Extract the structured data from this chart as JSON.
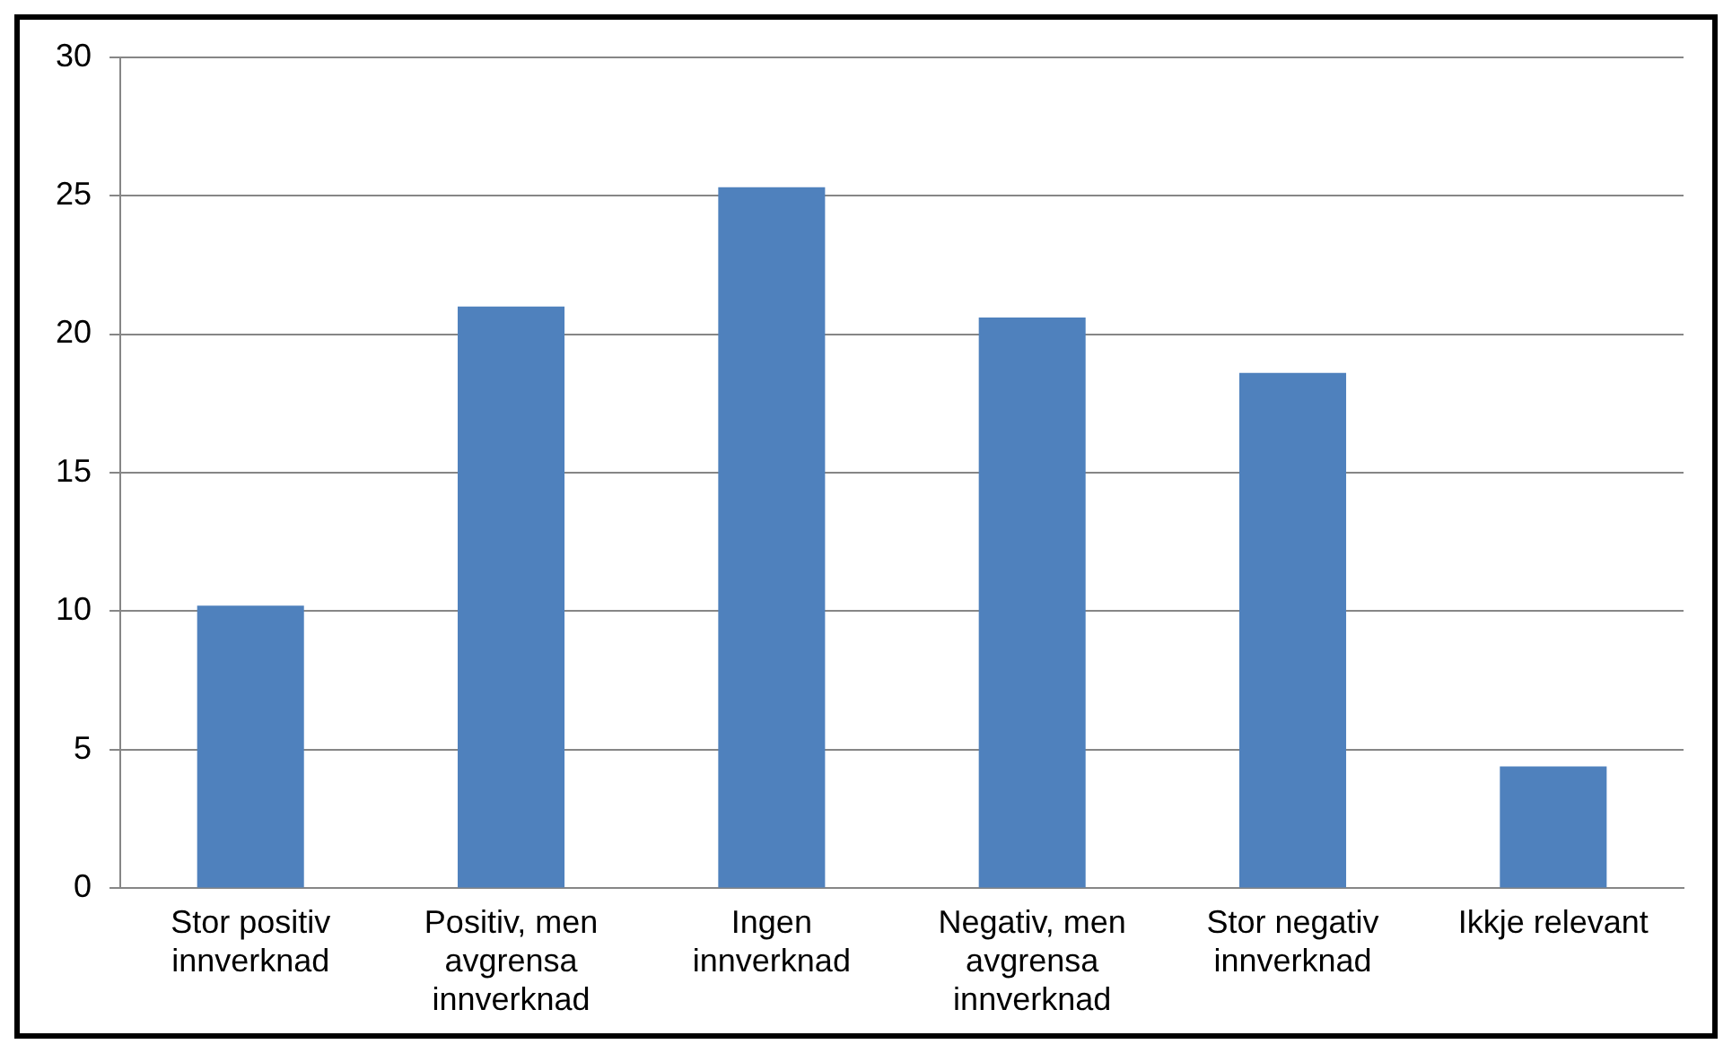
{
  "chart_data": {
    "type": "bar",
    "categories": [
      "Stor positiv innverknad",
      "Positiv, men avgrensa innverknad",
      "Ingen innverknad",
      "Negativ, men avgrensa innverknad",
      "Stor negativ innverknad",
      "Ikkje relevant"
    ],
    "values": [
      10.2,
      21.0,
      25.3,
      20.6,
      18.6,
      4.4
    ],
    "color": "#4f81bd",
    "ylim": [
      0,
      30
    ],
    "yticks": [
      0,
      5,
      10,
      15,
      20,
      25,
      30
    ],
    "grid": "y",
    "legend": false
  }
}
